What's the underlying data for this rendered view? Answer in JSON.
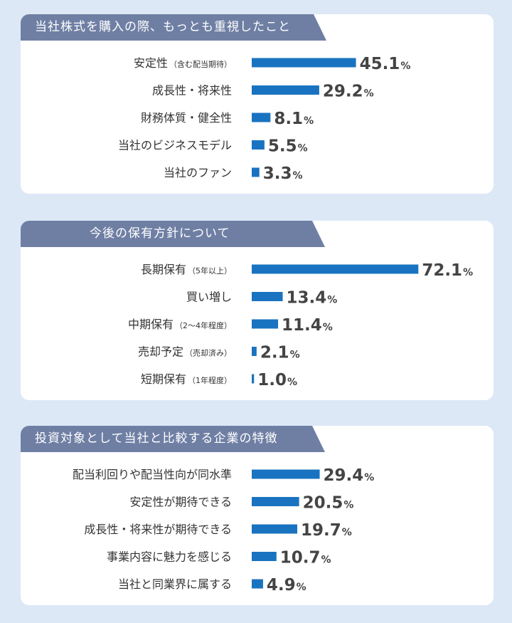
{
  "colors": {
    "background": "#dde8f6",
    "panel": "#ffffff",
    "header": "#6f7fa4",
    "bar": "#1a73c0"
  },
  "chart_data": [
    {
      "type": "bar",
      "title": "当社株式を購入の際、もっとも重視したこと",
      "unit": "%",
      "categories": [
        {
          "main": "安定性",
          "sub": "（含む配当期待）"
        },
        {
          "main": "成長性・将来性",
          "sub": ""
        },
        {
          "main": "財務体質・健全性",
          "sub": ""
        },
        {
          "main": "当社のビジネスモデル",
          "sub": ""
        },
        {
          "main": "当社のファン",
          "sub": ""
        }
      ],
      "values": [
        45.1,
        29.2,
        8.1,
        5.5,
        3.3
      ]
    },
    {
      "type": "bar",
      "title": "今後の保有方針について",
      "unit": "%",
      "categories": [
        {
          "main": "長期保有",
          "sub": "（5年以上）"
        },
        {
          "main": "買い増し",
          "sub": ""
        },
        {
          "main": "中期保有",
          "sub": "（2～4年程度）"
        },
        {
          "main": "売却予定",
          "sub": "（売却済み）"
        },
        {
          "main": "短期保有",
          "sub": "（1年程度）"
        }
      ],
      "values": [
        72.1,
        13.4,
        11.4,
        2.1,
        1.0
      ]
    },
    {
      "type": "bar",
      "title": "投資対象として当社と比較する企業の特徴",
      "unit": "%",
      "categories": [
        {
          "main": "配当利回りや配当性向が同水準",
          "sub": ""
        },
        {
          "main": "安定性が期待できる",
          "sub": ""
        },
        {
          "main": "成長性・将来性が期待できる",
          "sub": ""
        },
        {
          "main": "事業内容に魅力を感じる",
          "sub": ""
        },
        {
          "main": "当社と同業界に属する",
          "sub": ""
        }
      ],
      "values": [
        29.4,
        20.5,
        19.7,
        10.7,
        4.9
      ]
    }
  ]
}
